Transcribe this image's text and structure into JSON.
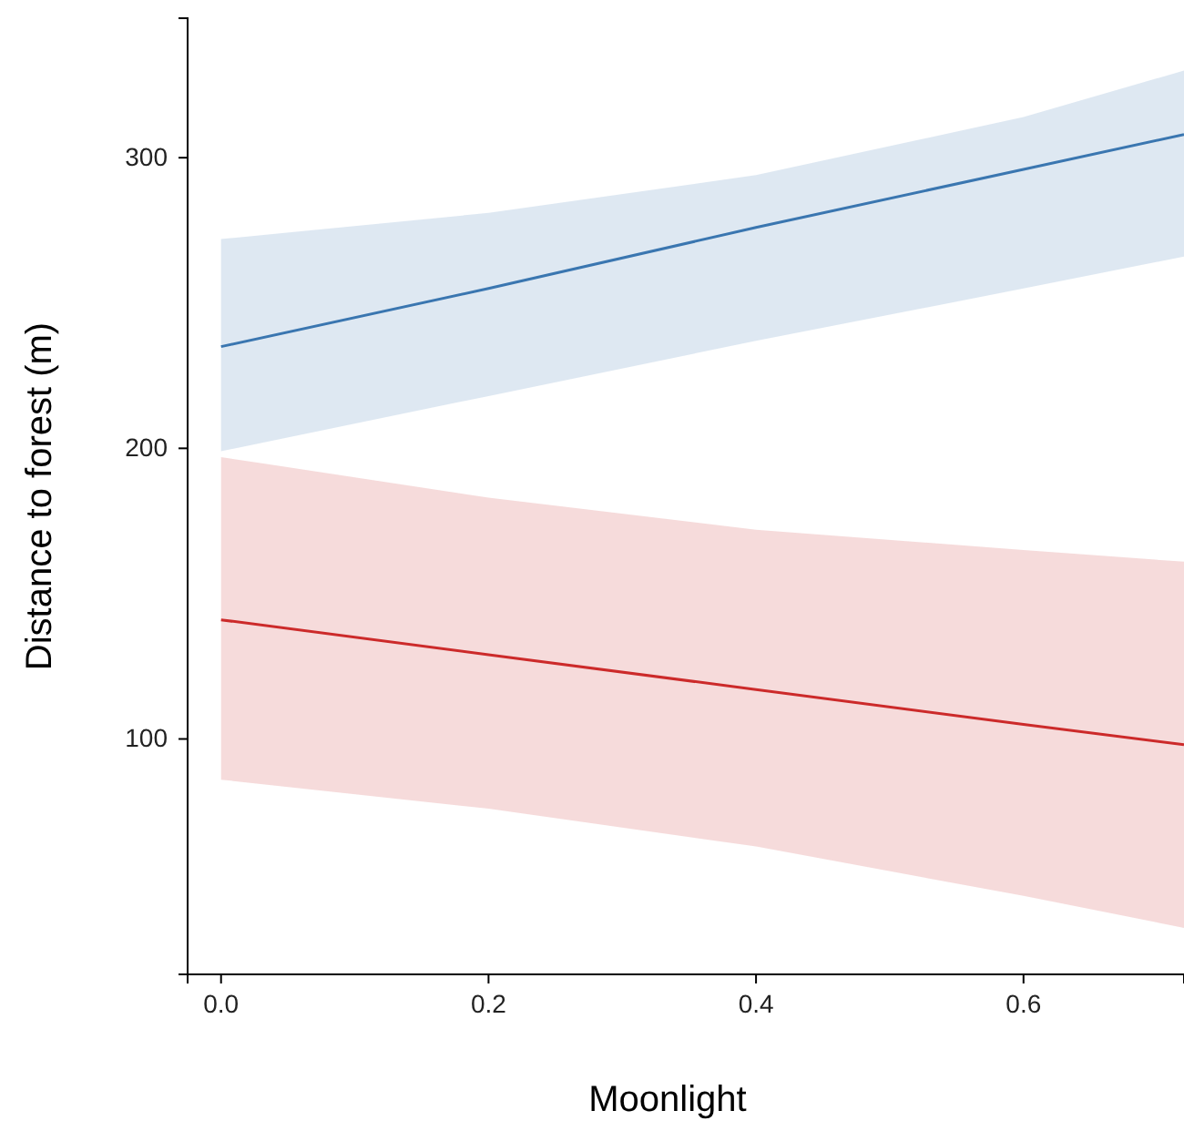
{
  "chart_data": {
    "type": "line",
    "xlabel": "Moonlight",
    "ylabel": "Distance to forest (m)",
    "xlim": [
      -0.025,
      0.72
    ],
    "ylim": [
      19,
      348
    ],
    "xticks": [
      {
        "value": 0,
        "label": "0.0"
      },
      {
        "value": 0.2,
        "label": "0.2"
      },
      {
        "value": 0.4,
        "label": "0.4"
      },
      {
        "value": 0.6,
        "label": "0.6"
      }
    ],
    "yticks": [
      100,
      200,
      300
    ],
    "grid": false,
    "series": [
      {
        "color": "#3a76b0",
        "x": [
          0,
          0.2,
          0.4,
          0.6,
          0.72
        ],
        "values": [
          235,
          255,
          276,
          296,
          308
        ],
        "lower": [
          199,
          218,
          237,
          255,
          266
        ],
        "upper": [
          272,
          281,
          294,
          314,
          330
        ]
      },
      {
        "color": "#cc2a2a",
        "x": [
          0,
          0.2,
          0.4,
          0.6,
          0.72
        ],
        "values": [
          141,
          129,
          117,
          105,
          98
        ],
        "lower": [
          86,
          76,
          63,
          46,
          35
        ],
        "upper": [
          197,
          183,
          172,
          165,
          161
        ]
      }
    ]
  }
}
